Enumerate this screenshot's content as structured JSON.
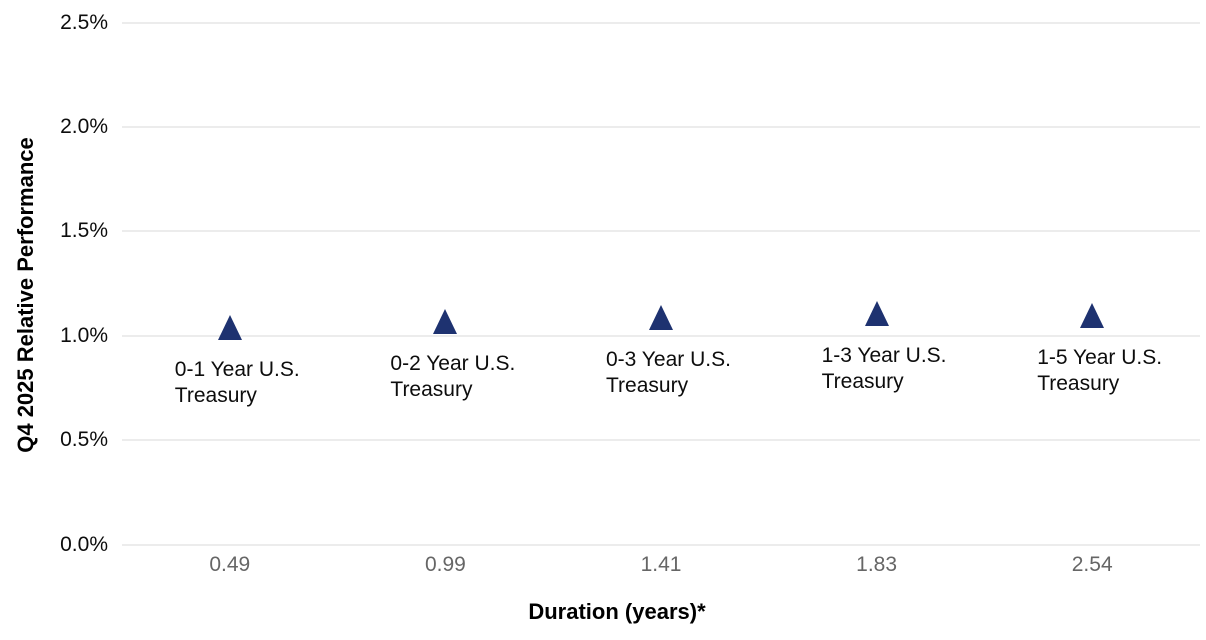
{
  "chart_data": {
    "type": "scatter",
    "title": "",
    "xlabel": "Duration (years)*",
    "ylabel": "Q4 2025 Relative Performance",
    "ylim": [
      0,
      2.5
    ],
    "yticks": [
      {
        "value": 0.0,
        "label": "0.0%"
      },
      {
        "value": 0.5,
        "label": "0.5%"
      },
      {
        "value": 1.0,
        "label": "1.0%"
      },
      {
        "value": 1.5,
        "label": "1.5%"
      },
      {
        "value": 2.0,
        "label": "2.0%"
      },
      {
        "value": 2.5,
        "label": "2.5%"
      }
    ],
    "grid": "horizontal-only",
    "legend": "none",
    "x_spacing": "equal-categorical",
    "marker_shape": "triangle-up",
    "colors": {
      "marker": "#1e3270",
      "gridline": "#ececec",
      "y_tick_text": "#0d0d0d",
      "x_tick_text": "#666666",
      "data_label_text": "#0d0d0d",
      "background": "#ffffff"
    },
    "points": [
      {
        "label": "0-1 Year U.S. Treasury",
        "x_label": "0.49",
        "duration_years": 0.49,
        "performance_pct": 1.04
      },
      {
        "label": "0-2 Year U.S. Treasury",
        "x_label": "0.99",
        "duration_years": 0.99,
        "performance_pct": 1.07
      },
      {
        "label": "0-3 Year U.S. Treasury",
        "x_label": "1.41",
        "duration_years": 1.41,
        "performance_pct": 1.09
      },
      {
        "label": "1-3 Year U.S. Treasury",
        "x_label": "1.83",
        "duration_years": 1.83,
        "performance_pct": 1.11
      },
      {
        "label": "1-5 Year U.S. Treasury",
        "x_label": "2.54",
        "duration_years": 2.54,
        "performance_pct": 1.1
      }
    ]
  }
}
